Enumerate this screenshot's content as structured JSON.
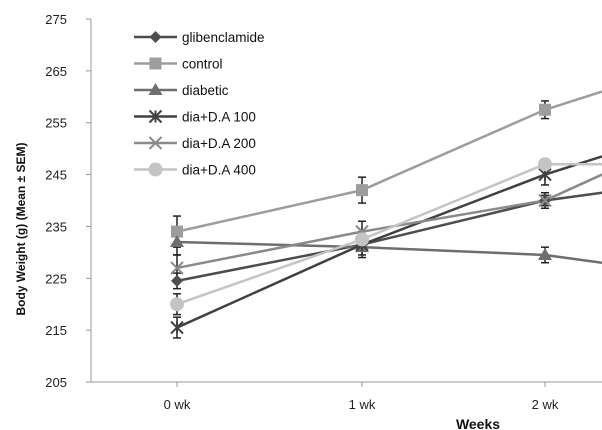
{
  "chart_data": {
    "type": "line",
    "title": "",
    "xlabel": "Weeks",
    "ylabel": "Body Weight (g) (Mean ± SEM)",
    "categories": [
      "0 wk",
      "1 wk",
      "2 wk"
    ],
    "ylim": [
      205,
      275
    ],
    "yticks": [
      205,
      215,
      225,
      235,
      245,
      255,
      265,
      275
    ],
    "grid": false,
    "legend_position": "top-left",
    "series": [
      {
        "name": "glibenclamide",
        "values": [
          224.5,
          231.5,
          240.0
        ],
        "end_value": 241.5,
        "color": "#4d4d4d",
        "marker": "diamond",
        "errors": [
          1.5,
          1.0,
          1.0
        ]
      },
      {
        "name": "control",
        "values": [
          234.0,
          242.0,
          257.5
        ],
        "end_value": 261.0,
        "color": "#9d9d9d",
        "marker": "square",
        "errors": [
          3.0,
          2.5,
          1.7
        ]
      },
      {
        "name": "diabetic",
        "values": [
          232.0,
          231.0,
          229.5
        ],
        "end_value": 228.0,
        "color": "#6e6e6e",
        "marker": "triangle",
        "errors": [
          2.5,
          1.5,
          1.5
        ]
      },
      {
        "name": "dia+D.A 100",
        "values": [
          215.5,
          231.5,
          245.0
        ],
        "end_value": 248.5,
        "color": "#404040",
        "marker": "star",
        "errors": [
          2.0,
          2.5,
          2.0
        ]
      },
      {
        "name": "dia+D.A 200",
        "values": [
          227.0,
          234.0,
          240.0
        ],
        "end_value": 245.0,
        "color": "#8a8a8a",
        "marker": "x",
        "errors": [
          2.5,
          2.0,
          1.5
        ]
      },
      {
        "name": "dia+D.A 400",
        "values": [
          220.0,
          232.5,
          247.0
        ],
        "end_value": 247.0,
        "color": "#c4c4c4",
        "marker": "circle",
        "errors": [
          2.0,
          1.5,
          1.0
        ]
      }
    ]
  }
}
